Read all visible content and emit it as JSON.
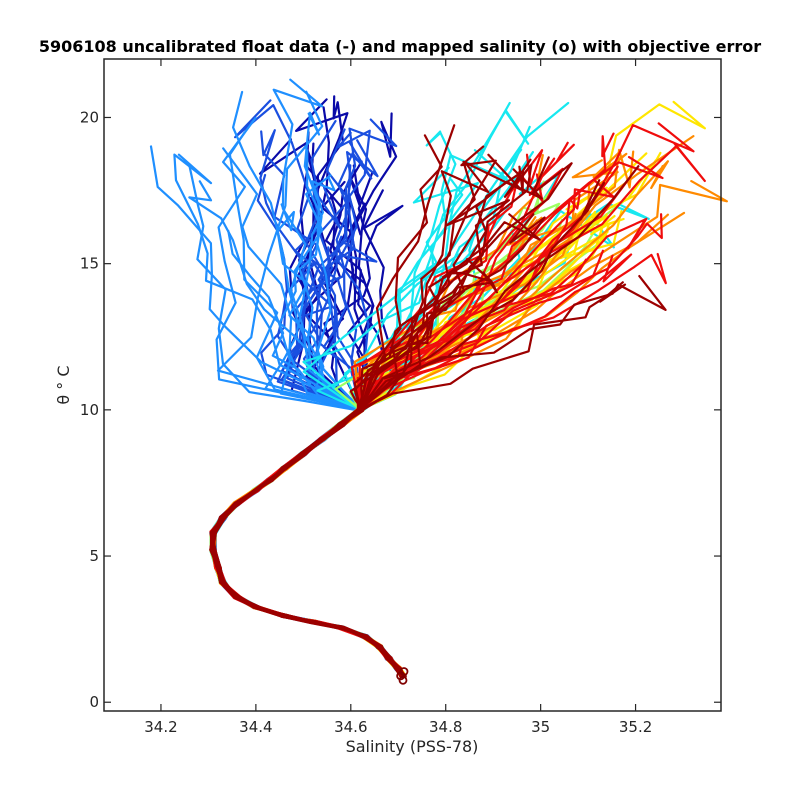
{
  "chart_data": {
    "type": "line",
    "title": "5906108 uncalibrated float data (-) and mapped salinity (o) with objective error",
    "xlabel": "Salinity (PSS-78)",
    "ylabel": "θ ° C",
    "xlim": [
      34.08,
      35.38
    ],
    "ylim": [
      -0.3,
      22.0
    ],
    "x_ticks": [
      34.2,
      34.4,
      34.6,
      34.8,
      35,
      35.2
    ],
    "x_tick_labels": [
      "34.2",
      "34.4",
      "34.6",
      "34.8",
      "35",
      "35.2"
    ],
    "y_ticks": [
      0,
      5,
      10,
      15,
      20
    ],
    "y_tick_labels": [
      "0",
      "5",
      "10",
      "15",
      "20"
    ],
    "grid": false,
    "legend": "none",
    "colormap": "jet",
    "colormap_stops": [
      "#00008f",
      "#0000ff",
      "#0080ff",
      "#00ffff",
      "#80ff80",
      "#ffff00",
      "#ff8000",
      "#ff0000",
      "#800000"
    ],
    "deep_profile": {
      "x": [
        34.71,
        34.7,
        34.68,
        34.66,
        34.63,
        34.58,
        34.52,
        34.46,
        34.4,
        34.36,
        34.33,
        34.32,
        34.31,
        34.31,
        34.33,
        34.36,
        34.4,
        34.43,
        34.46,
        34.5,
        34.54,
        34.58,
        34.62
      ],
      "y": [
        0.9,
        1.15,
        1.5,
        1.9,
        2.25,
        2.55,
        2.75,
        2.95,
        3.25,
        3.6,
        4.1,
        4.6,
        5.2,
        5.8,
        6.3,
        6.8,
        7.25,
        7.6,
        8.0,
        8.5,
        9.0,
        9.5,
        10.0
      ]
    },
    "cycle_groups": [
      {
        "name": "",
        "color": "#0a0aa8",
        "n": 16,
        "split_lo": 34.46,
        "split_hi": 34.68,
        "up_lo": 34.5,
        "up_hi": 34.7,
        "top_lo": 17.0,
        "top_hi": 20.8
      },
      {
        "name": "",
        "color": "#1a4fe0",
        "n": 16,
        "split_lo": 34.42,
        "split_hi": 34.62,
        "up_lo": 34.4,
        "up_hi": 34.62,
        "top_lo": 15.0,
        "top_hi": 20.5
      },
      {
        "name": "",
        "color": "#1f8fff",
        "n": 16,
        "split_lo": 34.3,
        "split_hi": 34.55,
        "up_lo": 34.2,
        "up_hi": 34.55,
        "top_lo": 14.5,
        "top_hi": 21.0
      },
      {
        "name": "",
        "color": "#17e8f0",
        "n": 14,
        "split_lo": 34.5,
        "split_hi": 34.78,
        "up_lo": 34.78,
        "up_hi": 35.18,
        "top_lo": 16.5,
        "top_hi": 21.0
      },
      {
        "name": "",
        "color": "#9dff63",
        "n": 8,
        "split_lo": 34.55,
        "split_hi": 34.7,
        "up_lo": 34.95,
        "up_hi": 35.15,
        "top_lo": 15.5,
        "top_hi": 18.5
      },
      {
        "name": "",
        "color": "#ffe600",
        "n": 12,
        "split_lo": 34.6,
        "split_hi": 34.72,
        "up_lo": 35.1,
        "up_hi": 35.29,
        "top_lo": 16.0,
        "top_hi": 20.8
      },
      {
        "name": "",
        "color": "#ff8a00",
        "n": 12,
        "split_lo": 34.6,
        "split_hi": 34.7,
        "up_lo": 35.0,
        "up_hi": 35.29,
        "top_lo": 15.5,
        "top_hi": 19.5
      },
      {
        "name": "",
        "color": "#f00c0c",
        "n": 18,
        "split_lo": 34.6,
        "split_hi": 34.7,
        "up_lo": 34.95,
        "up_hi": 35.27,
        "top_lo": 14.8,
        "top_hi": 19.5
      },
      {
        "name": "",
        "color": "#9c0000",
        "n": 18,
        "split_lo": 34.6,
        "split_hi": 34.7,
        "up_lo": 34.76,
        "up_hi": 35.25,
        "top_lo": 14.0,
        "top_hi": 20.2
      }
    ],
    "markers": {
      "symbol": "o",
      "color": "#800000",
      "x": [
        34.71,
        34.705,
        34.712
      ],
      "y": [
        0.75,
        0.9,
        1.05
      ]
    }
  }
}
